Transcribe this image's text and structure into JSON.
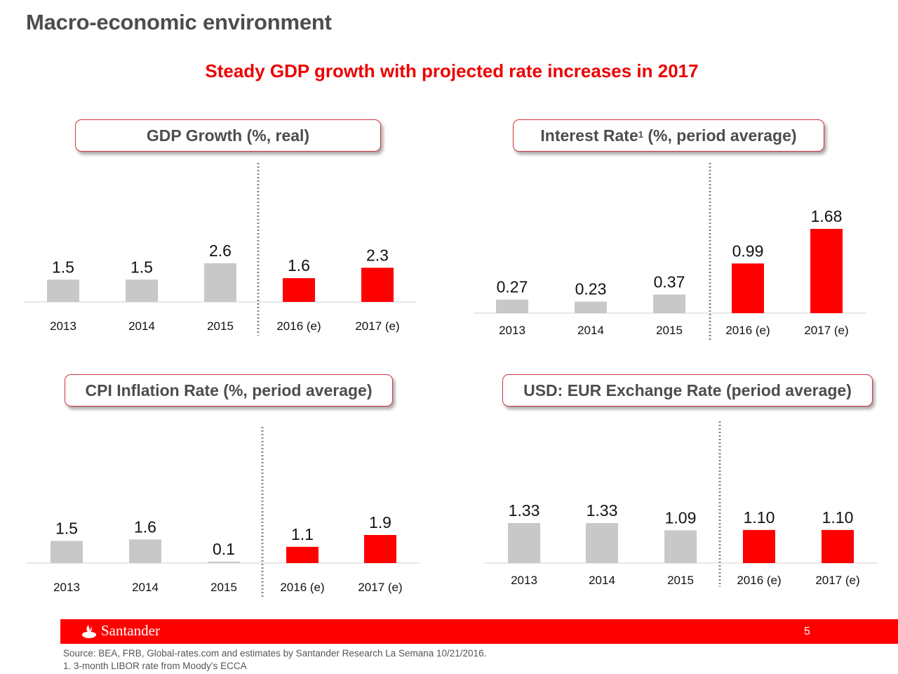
{
  "header": {
    "title": "Macro-economic environment",
    "subtitle": "Steady GDP growth with projected rate increases in 2017"
  },
  "colors": {
    "actual": "#c8c8c8",
    "estimate": "#ff0000",
    "brand_red": "#ec0000",
    "title_gray": "#4d4d4d"
  },
  "chart_data": [
    {
      "type": "bar",
      "title": "GDP Growth (%, real)",
      "categories": [
        "2013",
        "2014",
        "2015",
        "2016 (e)",
        "2017 (e)"
      ],
      "values": [
        1.5,
        1.5,
        2.6,
        1.6,
        2.3
      ],
      "labels": [
        "1.5",
        "1.5",
        "2.6",
        "1.6",
        "2.3"
      ],
      "estimate_from_index": 3,
      "xlabel": "",
      "ylabel": "",
      "ylim": [
        0,
        2.6
      ],
      "grid": false,
      "legend": "none"
    },
    {
      "type": "bar",
      "title": "Interest Rate",
      "title_superscript": "1",
      "title_suffix": " (%, period average)",
      "categories": [
        "2013",
        "2014",
        "2015",
        "2016 (e)",
        "2017 (e)"
      ],
      "values": [
        0.27,
        0.23,
        0.37,
        0.99,
        1.68
      ],
      "labels": [
        "0.27",
        "0.23",
        "0.37",
        "0.99",
        "1.68"
      ],
      "estimate_from_index": 3,
      "xlabel": "",
      "ylabel": "",
      "ylim": [
        0,
        1.68
      ],
      "grid": false,
      "legend": "none"
    },
    {
      "type": "bar",
      "title": "CPI Inflation Rate (%, period average)",
      "categories": [
        "2013",
        "2014",
        "2015",
        "2016 (e)",
        "2017 (e)"
      ],
      "values": [
        1.5,
        1.6,
        0.1,
        1.1,
        1.9
      ],
      "labels": [
        "1.5",
        "1.6",
        "0.1",
        "1.1",
        "1.9"
      ],
      "estimate_from_index": 3,
      "xlabel": "",
      "ylabel": "",
      "ylim": [
        0,
        1.9
      ],
      "grid": false,
      "legend": "none"
    },
    {
      "type": "bar",
      "title": "USD: EUR Exchange Rate (period average)",
      "categories": [
        "2013",
        "2014",
        "2015",
        "2016 (e)",
        "2017 (e)"
      ],
      "values": [
        1.33,
        1.33,
        1.09,
        1.1,
        1.1
      ],
      "labels": [
        "1.33",
        "1.33",
        "1.09",
        "1.10",
        "1.10"
      ],
      "estimate_from_index": 3,
      "xlabel": "",
      "ylabel": "",
      "ylim": [
        0,
        1.33
      ],
      "grid": false,
      "legend": "none"
    }
  ],
  "footer": {
    "brand": "Santander",
    "page_number": "5",
    "source": "Source: BEA, FRB, Global-rates.com and estimates by Santander Research La Semana 10/21/2016.",
    "footnote": "1. 3-month LIBOR  rate from Moody’s ECCA"
  }
}
